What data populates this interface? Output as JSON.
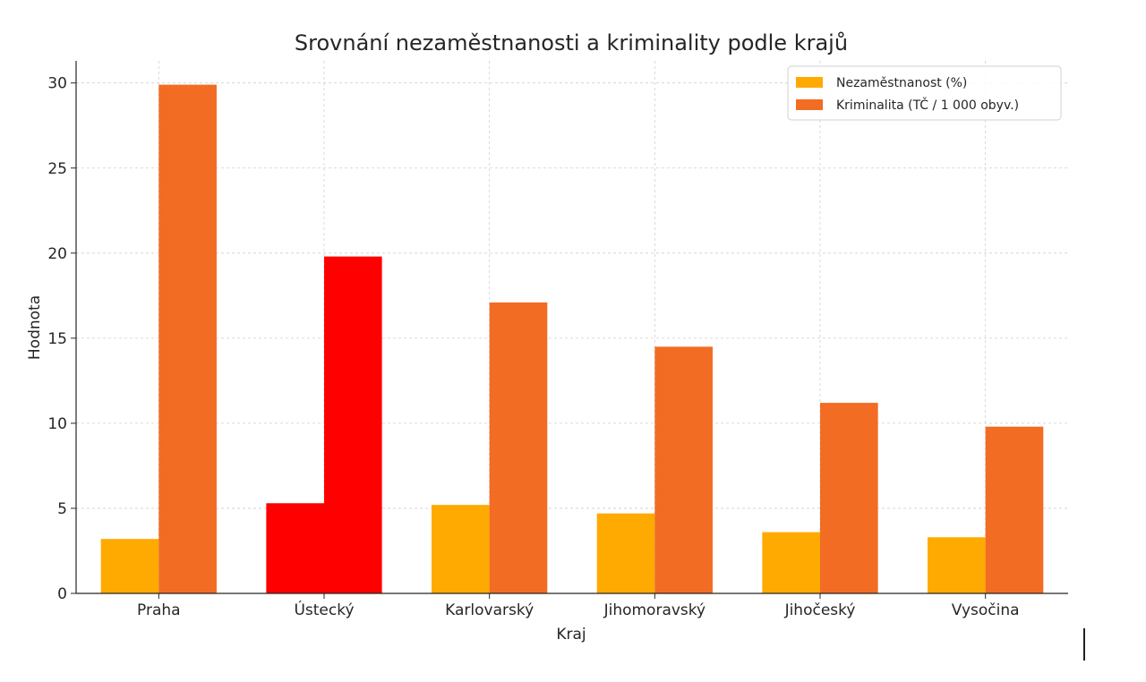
{
  "chart_data": {
    "type": "bar",
    "title": "Srovnání nezaměstnanosti a kriminality podle krajů",
    "xlabel": "Kraj",
    "ylabel": "Hodnota",
    "categories": [
      "Praha",
      "Ústecký",
      "Karlovarský",
      "Jihomoravský",
      "Jihočeský",
      "Vysočina"
    ],
    "series": [
      {
        "name": "Nezaměstnanost (%)",
        "color": "#FFAA00",
        "values": [
          3.2,
          5.3,
          5.2,
          4.7,
          3.6,
          3.3
        ]
      },
      {
        "name": "Kriminalita (TČ / 1 000 obyv.)",
        "color": "#F26C23",
        "values": [
          29.9,
          19.8,
          17.1,
          14.5,
          11.2,
          9.8
        ]
      }
    ],
    "highlight": {
      "category": "Ústecký",
      "color": "#FF0000"
    },
    "ylim": [
      0,
      31.3
    ],
    "yticks": [
      0,
      5,
      10,
      15,
      20,
      25,
      30
    ],
    "grid": true,
    "legend_position": "top-right"
  }
}
